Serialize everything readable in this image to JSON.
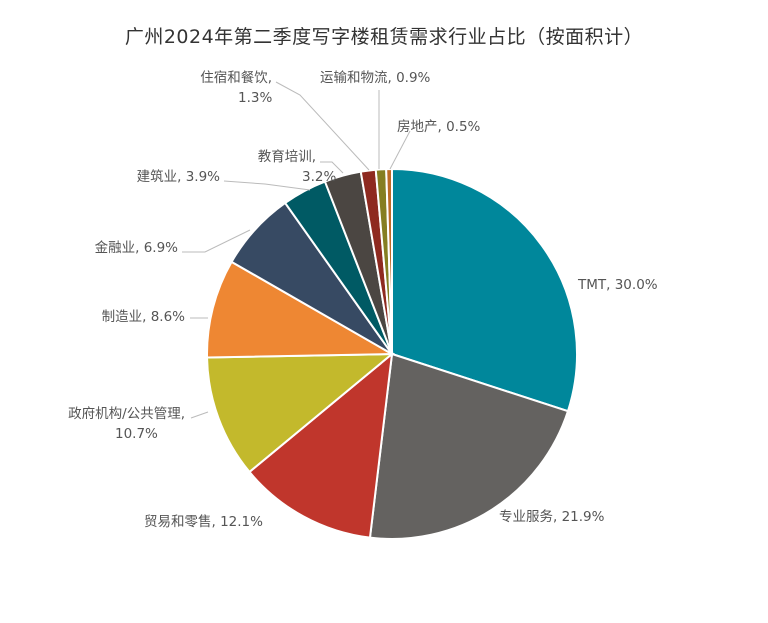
{
  "chart_data": {
    "type": "pie",
    "title": "广州2024年第二季度写字楼租赁需求行业占比（按面积计）",
    "categories": [
      "TMT",
      "专业服务",
      "贸易和零售",
      "政府机构/公共管理",
      "制造业",
      "金融业",
      "建筑业",
      "教育培训",
      "住宿和餐饮",
      "运输和物流",
      "房地产"
    ],
    "values": [
      30.0,
      21.9,
      12.1,
      10.7,
      8.6,
      6.9,
      3.9,
      3.2,
      1.3,
      0.9,
      0.5
    ],
    "colors": [
      "#00879b",
      "#646260",
      "#c0362c",
      "#c3b92c",
      "#ee8733",
      "#374a63",
      "#005a64",
      "#4b4642",
      "#8e2a20",
      "#857e22",
      "#bd6a26"
    ],
    "slice_labels": [
      [
        "TMT, 30.0%"
      ],
      [
        "专业服务, 21.9%"
      ],
      [
        "贸易和零售, 12.1%"
      ],
      [
        "政府机构/公共管理,",
        "10.7%"
      ],
      [
        "制造业, 8.6%"
      ],
      [
        "金融业, 6.9%"
      ],
      [
        "建筑业, 3.9%"
      ],
      [
        "教育培训,",
        "3.2%"
      ],
      [
        "住宿和餐饮,",
        "1.3%"
      ],
      [
        "运输和物流, 0.9%"
      ],
      [
        "房地产, 0.5%"
      ]
    ],
    "legend": "none",
    "start_angle": "12 o'clock",
    "direction": "clockwise"
  }
}
